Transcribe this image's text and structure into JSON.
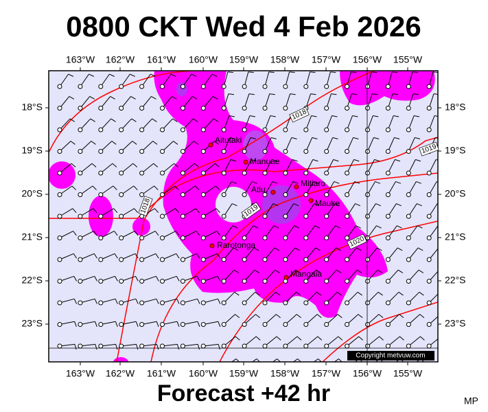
{
  "header": {
    "title": "0800 CKT Wed 4 Feb 2026"
  },
  "map": {
    "lon_labels": [
      "163°W",
      "162°W",
      "161°W",
      "160°W",
      "159°W",
      "158°W",
      "157°W",
      "156°W",
      "155°W"
    ],
    "lat_labels": [
      "18°S",
      "19°S",
      "20°S",
      "21°S",
      "22°S",
      "23°S"
    ],
    "places": [
      "Aitutaki",
      "Manuae",
      "Atiu",
      "Mitiaro",
      "Mauke",
      "Rarotonga",
      "Mangaia"
    ],
    "isobar_labels": [
      "1018",
      "1019",
      "1018",
      "1019",
      "1020"
    ],
    "copyright": "Copyright metvuw.com"
  },
  "footer": {
    "forecast": "Forecast +42 hr",
    "initials": "MP"
  }
}
